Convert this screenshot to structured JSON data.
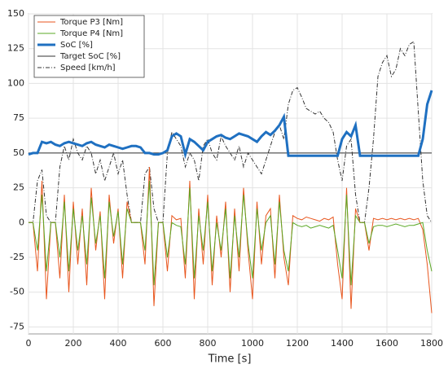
{
  "chart_data": {
    "type": "line",
    "x_label": "Time [s]",
    "x": [
      0,
      20,
      40,
      60,
      80,
      100,
      120,
      140,
      160,
      180,
      200,
      220,
      240,
      260,
      280,
      300,
      320,
      340,
      360,
      380,
      400,
      420,
      440,
      460,
      480,
      500,
      520,
      540,
      560,
      580,
      600,
      620,
      640,
      660,
      680,
      700,
      720,
      740,
      760,
      780,
      800,
      820,
      840,
      860,
      880,
      900,
      920,
      940,
      960,
      980,
      1000,
      1020,
      1040,
      1060,
      1080,
      1100,
      1120,
      1140,
      1160,
      1180,
      1200,
      1220,
      1240,
      1260,
      1280,
      1300,
      1320,
      1340,
      1360,
      1380,
      1400,
      1420,
      1440,
      1460,
      1480,
      1500,
      1520,
      1540,
      1560,
      1580,
      1600,
      1620,
      1640,
      1660,
      1680,
      1700,
      1720,
      1740,
      1760,
      1780,
      1800
    ],
    "xlim": [
      0,
      1800
    ],
    "xticks": [
      0,
      200,
      400,
      600,
      800,
      1000,
      1200,
      1400,
      1600,
      1800
    ],
    "ylim": [
      -80,
      150
    ],
    "yticks": [
      -75,
      -50,
      -25,
      0,
      25,
      50,
      75,
      100,
      125,
      150
    ],
    "grid": true,
    "legend": "upper left",
    "series": [
      {
        "name": "Torque P3 [Nm]",
        "color": "#e8561e",
        "width": 1,
        "dash": "none",
        "values": [
          0,
          0,
          -35,
          30,
          -55,
          0,
          0,
          -40,
          20,
          -50,
          15,
          -30,
          10,
          -45,
          25,
          -20,
          8,
          -55,
          20,
          -15,
          10,
          -40,
          15,
          0,
          0,
          0,
          -30,
          40,
          -60,
          0,
          0,
          -35,
          5,
          2,
          3,
          -40,
          30,
          -55,
          10,
          -30,
          20,
          -45,
          5,
          -25,
          15,
          -50,
          10,
          -35,
          25,
          -20,
          -55,
          15,
          -30,
          5,
          10,
          -40,
          20,
          -25,
          -45,
          5,
          3,
          2,
          4,
          3,
          2,
          1,
          3,
          2,
          4,
          -30,
          -55,
          25,
          -62,
          10,
          0,
          0,
          -20,
          3,
          2,
          3,
          2,
          3,
          2,
          3,
          2,
          3,
          2,
          3,
          -5,
          -30,
          -65
        ]
      },
      {
        "name": "Torque P4 [Nm]",
        "color": "#5aa825",
        "width": 1,
        "dash": "none",
        "values": [
          0,
          0,
          -20,
          20,
          -35,
          0,
          0,
          -25,
          15,
          -35,
          10,
          -20,
          5,
          -30,
          18,
          -15,
          5,
          -40,
          15,
          -10,
          8,
          -30,
          10,
          0,
          0,
          0,
          -20,
          30,
          -45,
          0,
          0,
          -25,
          0,
          -2,
          -3,
          -30,
          25,
          -40,
          5,
          -20,
          15,
          -35,
          0,
          -20,
          10,
          -40,
          5,
          -25,
          20,
          -15,
          -40,
          10,
          -20,
          0,
          5,
          -30,
          15,
          -20,
          -35,
          0,
          -2,
          -3,
          -2,
          -4,
          -3,
          -2,
          -3,
          -4,
          -2,
          -20,
          -40,
          20,
          -45,
          5,
          0,
          0,
          -15,
          -3,
          -2,
          -2,
          -3,
          -2,
          -1,
          -2,
          -3,
          -2,
          -2,
          -1,
          0,
          -20,
          -35
        ]
      },
      {
        "name": "SoC [%]",
        "color": "#1f70c1",
        "width": 3,
        "dash": "none",
        "values": [
          49,
          50,
          50,
          58,
          57,
          58,
          56,
          55,
          57,
          58,
          57,
          56,
          55,
          57,
          58,
          56,
          55,
          54,
          56,
          55,
          54,
          53,
          54,
          55,
          55,
          54,
          50,
          50,
          49,
          49,
          50,
          52,
          62,
          64,
          62,
          49,
          60,
          58,
          55,
          52,
          58,
          60,
          62,
          63,
          61,
          60,
          62,
          64,
          63,
          62,
          60,
          58,
          62,
          65,
          63,
          66,
          70,
          76,
          48,
          48,
          48,
          48,
          48,
          48,
          48,
          48,
          48,
          48,
          48,
          48,
          60,
          65,
          62,
          70,
          48,
          48,
          48,
          48,
          48,
          48,
          48,
          48,
          48,
          48,
          48,
          48,
          48,
          48,
          60,
          85,
          95
        ]
      },
      {
        "name": "Target SoC [%]",
        "color": "#333333",
        "width": 1,
        "dash": "none",
        "values": [
          50,
          50,
          50,
          50,
          50,
          50,
          50,
          50,
          50,
          50,
          50,
          50,
          50,
          50,
          50,
          50,
          50,
          50,
          50,
          50,
          50,
          50,
          50,
          50,
          50,
          50,
          50,
          50,
          50,
          50,
          50,
          50,
          50,
          50,
          50,
          50,
          50,
          50,
          50,
          50,
          50,
          50,
          50,
          50,
          50,
          50,
          50,
          50,
          50,
          50,
          50,
          50,
          50,
          50,
          50,
          50,
          50,
          50,
          50,
          50,
          50,
          50,
          50,
          50,
          50,
          50,
          50,
          50,
          50,
          50,
          50,
          50,
          50,
          50,
          50,
          50,
          50,
          50,
          50,
          50,
          50,
          50,
          50,
          50,
          50,
          50,
          50,
          50,
          50,
          50,
          50
        ]
      },
      {
        "name": "Speed [km/h]",
        "color": "#333333",
        "width": 1,
        "dash": "5,2,1,2",
        "values": [
          0,
          0,
          30,
          38,
          5,
          0,
          0,
          40,
          55,
          45,
          60,
          50,
          45,
          55,
          50,
          35,
          45,
          30,
          40,
          50,
          35,
          45,
          20,
          0,
          0,
          0,
          35,
          40,
          10,
          0,
          0,
          50,
          65,
          60,
          55,
          40,
          50,
          45,
          30,
          55,
          60,
          50,
          45,
          62,
          55,
          50,
          45,
          55,
          40,
          50,
          45,
          40,
          35,
          45,
          55,
          65,
          70,
          60,
          85,
          95,
          97,
          90,
          82,
          80,
          78,
          80,
          75,
          72,
          65,
          45,
          30,
          55,
          60,
          20,
          0,
          0,
          25,
          60,
          105,
          115,
          120,
          105,
          110,
          125,
          120,
          128,
          130,
          80,
          30,
          5,
          0
        ]
      }
    ]
  }
}
